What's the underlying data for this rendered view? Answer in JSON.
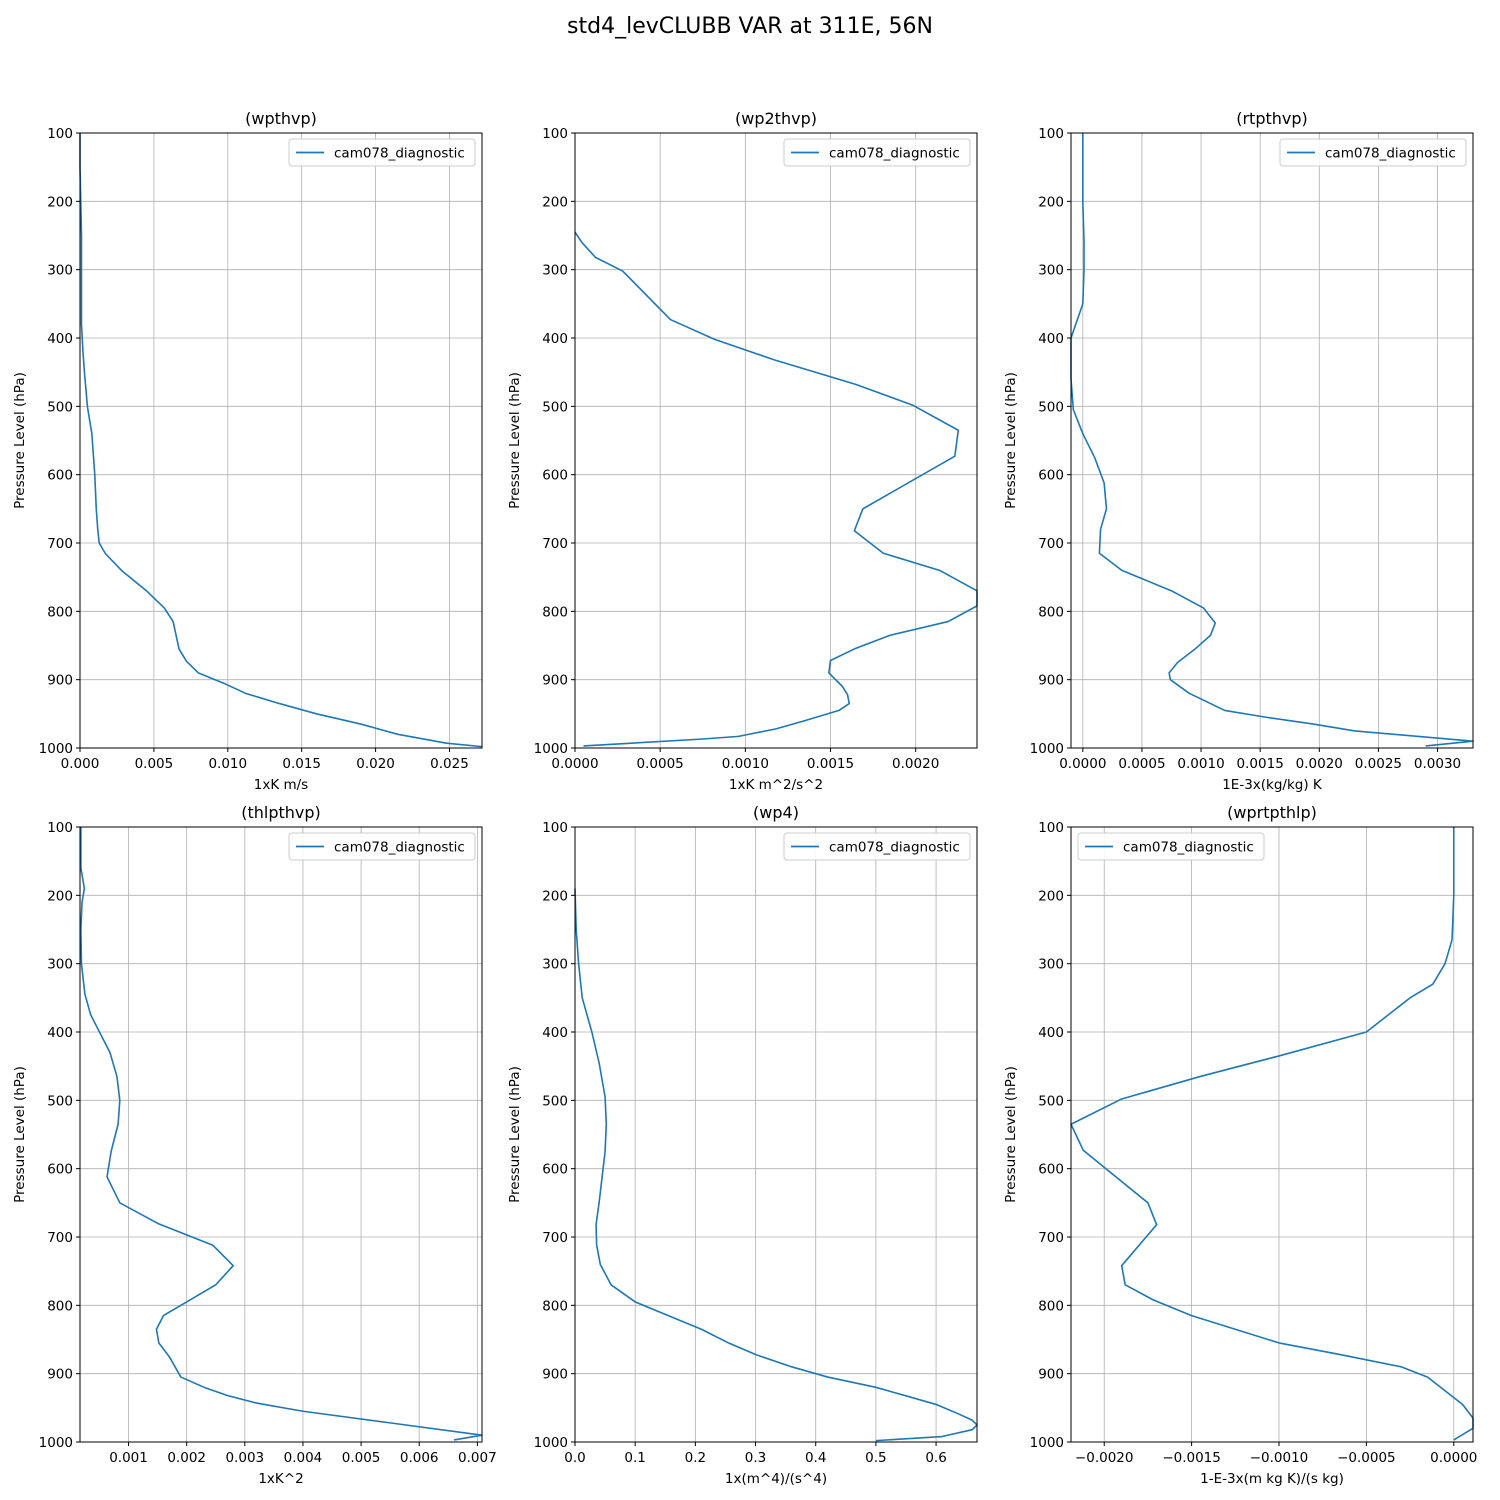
{
  "suptitle": "std4_levCLUBB VAR at 311E, 56N",
  "chart_data": [
    {
      "type": "line",
      "title": "(wpthvp)",
      "xlabel": "1xK m/s",
      "ylabel": "Pressure Level (hPa)",
      "xlim": [
        0,
        0.0272
      ],
      "ylim": [
        1000,
        100
      ],
      "xticks": [
        0,
        0.005,
        0.01,
        0.015,
        0.02,
        0.025
      ],
      "xtick_labels": [
        "0.000",
        "0.005",
        "0.010",
        "0.015",
        "0.020",
        "0.025"
      ],
      "yticks": [
        100,
        200,
        300,
        400,
        500,
        600,
        700,
        800,
        900,
        1000
      ],
      "ytick_labels": [
        "100",
        "200",
        "300",
        "400",
        "500",
        "600",
        "700",
        "800",
        "900",
        "1000"
      ],
      "grid": true,
      "legend_position": "upper right",
      "series": [
        {
          "name": "cam078_diagnostic",
          "color": "#1f77b4",
          "x": [
            0.0,
            0.0,
            5e-05,
            0.0001,
            0.0001,
            0.0001,
            0.0001,
            0.0002,
            0.0003,
            0.0005,
            0.0008,
            0.0009,
            0.001,
            0.0011,
            0.0012,
            0.0013,
            0.0017,
            0.0028,
            0.0045,
            0.0057,
            0.0063,
            0.0065,
            0.0067,
            0.0072,
            0.008,
            0.0097,
            0.0112,
            0.0135,
            0.016,
            0.019,
            0.0215,
            0.0248,
            0.0272
          ],
          "y": [
            100,
            150,
            200,
            250,
            300,
            340,
            380,
            420,
            450,
            500,
            540,
            570,
            600,
            650,
            680,
            700,
            715,
            740,
            770,
            795,
            815,
            835,
            855,
            873,
            890,
            905,
            920,
            935,
            950,
            965,
            980,
            993,
            998
          ]
        }
      ]
    },
    {
      "type": "line",
      "title": "(wp2thvp)",
      "xlabel": "1xK m^2/s^2",
      "ylabel": "Pressure Level (hPa)",
      "xlim": [
        0,
        0.00236
      ],
      "ylim": [
        1000,
        100
      ],
      "xticks": [
        0,
        0.0005,
        0.001,
        0.0015,
        0.002
      ],
      "xtick_labels": [
        "0.0000",
        "0.0005",
        "0.0010",
        "0.0015",
        "0.0020"
      ],
      "yticks": [
        100,
        200,
        300,
        400,
        500,
        600,
        700,
        800,
        900,
        1000
      ],
      "ytick_labels": [
        "100",
        "200",
        "300",
        "400",
        "500",
        "600",
        "700",
        "800",
        "900",
        "1000"
      ],
      "grid": true,
      "legend_position": "upper right",
      "series": [
        {
          "name": "cam078_diagnostic",
          "color": "#1f77b4",
          "x": [
            0.0,
            4e-05,
            0.00012,
            0.00028,
            0.00056,
            0.00082,
            0.00117,
            0.00165,
            0.00198,
            0.00225,
            0.00223,
            0.00169,
            0.00164,
            0.00181,
            0.00214,
            0.00236,
            0.00236,
            0.00219,
            0.00185,
            0.00164,
            0.0015,
            0.00149,
            0.00157,
            0.0016,
            0.00161,
            0.00155,
            0.00135,
            0.00118,
            0.00096,
            0.00074,
            5e-05
          ],
          "y": [
            245,
            260,
            282,
            302,
            373,
            402,
            432,
            468,
            498,
            535,
            573,
            650,
            682,
            715,
            740,
            770,
            792,
            815,
            835,
            855,
            872,
            890,
            910,
            922,
            935,
            945,
            960,
            972,
            983,
            987,
            997
          ]
        }
      ]
    },
    {
      "type": "line",
      "title": "(rtpthvp)",
      "xlabel": "1E-3x(kg/kg) K",
      "ylabel": "Pressure Level (hPa)",
      "xlim": [
        -0.0001,
        0.0033
      ],
      "ylim": [
        1000,
        100
      ],
      "xticks": [
        0,
        0.0005,
        0.001,
        0.0015,
        0.002,
        0.0025,
        0.003
      ],
      "xtick_labels": [
        "0.0000",
        "0.0005",
        "0.0010",
        "0.0015",
        "0.0020",
        "0.0025",
        "0.0030"
      ],
      "yticks": [
        100,
        200,
        300,
        400,
        500,
        600,
        700,
        800,
        900,
        1000
      ],
      "ytick_labels": [
        "100",
        "200",
        "300",
        "400",
        "500",
        "600",
        "700",
        "800",
        "900",
        "1000"
      ],
      "grid": true,
      "legend_position": "upper right",
      "series": [
        {
          "name": "cam078_diagnostic",
          "color": "#1f77b4",
          "x": [
            0.0,
            0.0,
            1e-05,
            1e-05,
            0.0,
            -0.0001,
            -0.0001,
            -8e-05,
            0.0,
            0.0001,
            0.00018,
            0.0002,
            0.00015,
            0.00014,
            0.00033,
            0.00075,
            0.00102,
            0.00112,
            0.00108,
            0.00095,
            0.0008,
            0.00073,
            0.00074,
            0.0009,
            0.00108,
            0.0012,
            0.00155,
            0.00195,
            0.0023,
            0.0033,
            0.0029
          ],
          "y": [
            100,
            200,
            260,
            300,
            350,
            400,
            460,
            505,
            540,
            575,
            612,
            650,
            680,
            715,
            740,
            770,
            795,
            817,
            835,
            855,
            875,
            890,
            900,
            920,
            935,
            945,
            955,
            965,
            975,
            990,
            997
          ]
        }
      ]
    },
    {
      "type": "line",
      "title": "(thlpthvp)",
      "xlabel": "1xK^2",
      "ylabel": "Pressure Level (hPa)",
      "xlim": [
        0.000165,
        0.00708
      ],
      "ylim": [
        1000,
        100
      ],
      "xticks": [
        0.001,
        0.002,
        0.003,
        0.004,
        0.005,
        0.006,
        0.007
      ],
      "xtick_labels": [
        "0.001",
        "0.002",
        "0.003",
        "0.004",
        "0.005",
        "0.006",
        "0.007"
      ],
      "yticks": [
        100,
        200,
        300,
        400,
        500,
        600,
        700,
        800,
        900,
        1000
      ],
      "ytick_labels": [
        "100",
        "200",
        "300",
        "400",
        "500",
        "600",
        "700",
        "800",
        "900",
        "1000"
      ],
      "grid": true,
      "legend_position": "upper right",
      "series": [
        {
          "name": "cam078_diagnostic",
          "color": "#1f77b4",
          "x": [
            0.00018,
            0.00018,
            0.00022,
            0.00024,
            0.0002,
            0.00018,
            0.00019,
            0.00025,
            0.00035,
            0.0005,
            0.00068,
            0.0008,
            0.00085,
            0.00082,
            0.0007,
            0.00063,
            0.00085,
            0.0015,
            0.00245,
            0.0028,
            0.0025,
            0.002,
            0.0016,
            0.00148,
            0.00152,
            0.0017,
            0.0019,
            0.0023,
            0.0027,
            0.0032,
            0.004,
            0.0055,
            0.00708,
            0.0066
          ],
          "y": [
            100,
            160,
            180,
            190,
            210,
            250,
            300,
            345,
            375,
            400,
            430,
            465,
            500,
            535,
            575,
            612,
            650,
            680,
            712,
            742,
            770,
            795,
            815,
            835,
            855,
            875,
            905,
            920,
            932,
            943,
            955,
            972,
            990,
            997
          ]
        }
      ]
    },
    {
      "type": "line",
      "title": "(wp4)",
      "xlabel": "1x(m^4)/(s^4)",
      "ylabel": "Pressure Level (hPa)",
      "xlim": [
        0,
        0.668
      ],
      "ylim": [
        1000,
        100
      ],
      "xticks": [
        0,
        0.1,
        0.2,
        0.3,
        0.4,
        0.5,
        0.6
      ],
      "xtick_labels": [
        "0.0",
        "0.1",
        "0.2",
        "0.3",
        "0.4",
        "0.5",
        "0.6"
      ],
      "yticks": [
        100,
        200,
        300,
        400,
        500,
        600,
        700,
        800,
        900,
        1000
      ],
      "ytick_labels": [
        "100",
        "200",
        "300",
        "400",
        "500",
        "600",
        "700",
        "800",
        "900",
        "1000"
      ],
      "grid": true,
      "legend_position": "upper right",
      "series": [
        {
          "name": "cam078_diagnostic",
          "color": "#1f77b4",
          "x": [
            0.0,
            0.002,
            0.006,
            0.012,
            0.02,
            0.028,
            0.04,
            0.05,
            0.052,
            0.05,
            0.04,
            0.035,
            0.036,
            0.042,
            0.06,
            0.1,
            0.155,
            0.21,
            0.255,
            0.3,
            0.36,
            0.42,
            0.5,
            0.56,
            0.6,
            0.635,
            0.66,
            0.668,
            0.66,
            0.61,
            0.5
          ],
          "y": [
            190,
            250,
            300,
            350,
            375,
            400,
            445,
            495,
            535,
            575,
            650,
            682,
            712,
            740,
            770,
            795,
            815,
            835,
            855,
            872,
            890,
            905,
            920,
            935,
            945,
            958,
            968,
            975,
            982,
            992,
            998
          ]
        }
      ]
    },
    {
      "type": "line",
      "title": "(wprtpthlp)",
      "xlabel": "1-E-3x(m kg K)/(s kg)",
      "ylabel": "Pressure Level (hPa)",
      "xlim": [
        -0.00219,
        0.00011
      ],
      "ylim": [
        1000,
        100
      ],
      "xticks": [
        -0.002,
        -0.0015,
        -0.001,
        -0.0005,
        0
      ],
      "xtick_labels": [
        "−0.0020",
        "−0.0015",
        "−0.0010",
        "−0.0005",
        "0.0000"
      ],
      "yticks": [
        100,
        200,
        300,
        400,
        500,
        600,
        700,
        800,
        900,
        1000
      ],
      "ytick_labels": [
        "100",
        "200",
        "300",
        "400",
        "500",
        "600",
        "700",
        "800",
        "900",
        "1000"
      ],
      "grid": true,
      "legend_position": "upper left",
      "series": [
        {
          "name": "cam078_diagnostic",
          "color": "#1f77b4",
          "x": [
            0.0,
            0.0,
            -1e-05,
            -5e-05,
            -0.00012,
            -0.00025,
            -0.0005,
            -0.001,
            -0.00145,
            -0.0019,
            -0.00219,
            -0.00212,
            -0.00175,
            -0.0017,
            -0.0019,
            -0.00188,
            -0.00172,
            -0.0015,
            -0.001,
            -0.00065,
            -0.0003,
            -0.00015,
            -5e-05,
            5e-05,
            0.00011,
            0.00011,
            0.0
          ],
          "y": [
            100,
            200,
            265,
            300,
            330,
            350,
            400,
            435,
            465,
            498,
            535,
            573,
            650,
            682,
            742,
            770,
            792,
            815,
            855,
            872,
            890,
            905,
            925,
            945,
            965,
            980,
            997
          ]
        }
      ]
    }
  ]
}
